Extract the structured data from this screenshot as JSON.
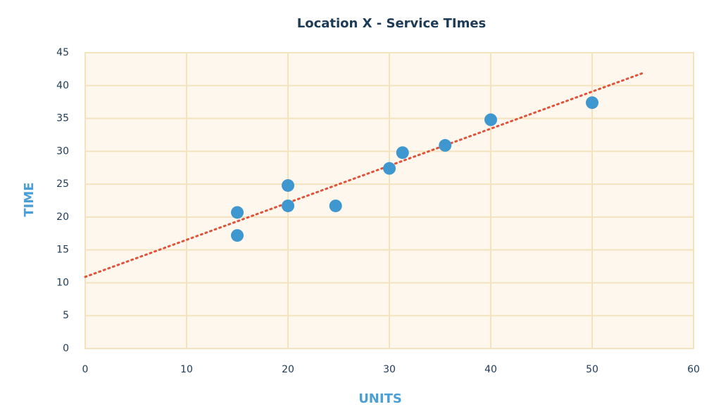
{
  "chart_data": {
    "type": "scatter",
    "title": "Location X - Service TImes",
    "x_label": "UNITS",
    "y_label": "TIME",
    "series": [
      {
        "x": [
          15,
          15,
          20,
          20,
          24.7,
          30,
          31.3,
          35.5,
          40,
          50
        ],
        "values": [
          20.7,
          17.2,
          24.8,
          21.7,
          21.7,
          27.4,
          29.8,
          30.9,
          34.8,
          37.4
        ],
        "color": "#3f97d0"
      }
    ],
    "trendline": {
      "x": [
        0,
        55
      ],
      "values": [
        10.9,
        41.9
      ],
      "color": "#e0533a"
    },
    "xlim": [
      0,
      60
    ],
    "xticks": [
      0,
      10,
      20,
      30,
      40,
      50,
      60
    ],
    "ylim": [
      0,
      45
    ],
    "yticks": [
      0,
      5,
      10,
      15,
      20,
      25,
      30,
      35,
      40,
      45
    ],
    "grid": true
  }
}
